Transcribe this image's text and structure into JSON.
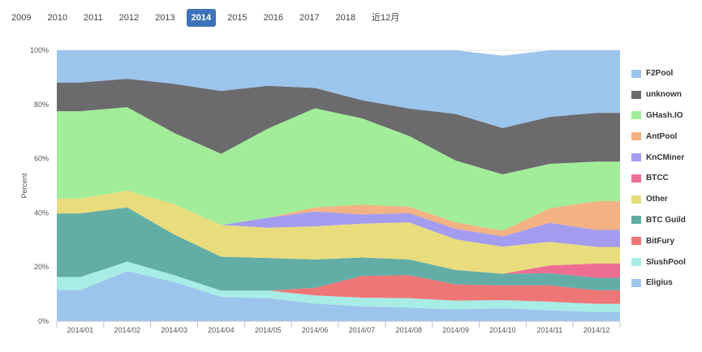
{
  "tabs": {
    "items": [
      "2009",
      "2010",
      "2011",
      "2012",
      "2013",
      "2014",
      "2015",
      "2016",
      "2017",
      "2018",
      "近12月"
    ],
    "active": "2014"
  },
  "chart_data": {
    "type": "area",
    "stacked": true,
    "percent": true,
    "ylabel": "Percent",
    "ylim": [
      0,
      100
    ],
    "yticks": [
      "0%",
      "20%",
      "40%",
      "60%",
      "80%",
      "100%"
    ],
    "categories": [
      "2014/01",
      "2014/02",
      "2014/03",
      "2014/04",
      "2014/05",
      "2014/06",
      "2014/07",
      "2014/08",
      "2014/09",
      "2014/10",
      "2014/11",
      "2014/12"
    ],
    "grid": true,
    "legend_position": "right",
    "series": [
      {
        "name": "Eligius",
        "color": "#9cc5ee",
        "values": [
          11.5,
          18.5,
          14.5,
          9.0,
          8.5,
          6.5,
          5.5,
          5.0,
          4.3,
          4.8,
          4.0,
          3.4
        ]
      },
      {
        "name": "SlushPool",
        "color": "#a8ece6",
        "values": [
          4.8,
          3.5,
          2.5,
          2.3,
          2.8,
          3.0,
          3.2,
          3.5,
          3.3,
          3.0,
          3.2,
          3.0
        ]
      },
      {
        "name": "BitFury",
        "color": "#ee7677",
        "values": [
          0,
          0,
          0,
          0,
          0,
          2.8,
          8.0,
          8.5,
          6.0,
          5.4,
          6.0,
          5.0
        ]
      },
      {
        "name": "BTC Guild",
        "color": "#62ada6",
        "values": [
          23.5,
          20.0,
          15.0,
          12.5,
          12.0,
          10.5,
          6.8,
          5.8,
          5.3,
          4.3,
          4.5,
          4.6
        ]
      },
      {
        "name": "BTCC",
        "color": "#ee6e93",
        "values": [
          0,
          0,
          0,
          0,
          0,
          0,
          0,
          0,
          0,
          0,
          2.9,
          5.3
        ]
      },
      {
        "name": "Other",
        "color": "#e9dc7d",
        "values": [
          5.5,
          6.2,
          11.2,
          11.7,
          11.2,
          12.2,
          12.5,
          13.7,
          11.3,
          10.0,
          8.7,
          6.1
        ]
      },
      {
        "name": "KnCMiner",
        "color": "#a49cf0",
        "values": [
          0,
          0,
          0,
          0,
          3.7,
          5.5,
          3.4,
          3.4,
          3.9,
          3.8,
          7.0,
          6.3
        ]
      },
      {
        "name": "AntPool",
        "color": "#f3b283",
        "values": [
          0,
          0,
          0,
          0,
          0,
          1.5,
          3.6,
          2.4,
          2.4,
          2.1,
          5.4,
          10.6
        ]
      },
      {
        "name": "GHash.IO",
        "color": "#a2ed9a",
        "values": [
          32.2,
          30.8,
          26.3,
          26.3,
          32.9,
          36.6,
          31.9,
          26.1,
          22.8,
          20.8,
          16.4,
          14.6
        ]
      },
      {
        "name": "unknown",
        "color": "#6b6a6d",
        "values": [
          10.6,
          10.5,
          18.1,
          23.2,
          15.8,
          7.5,
          6.7,
          10.1,
          17.2,
          17.1,
          17.3,
          18.0
        ]
      },
      {
        "name": "F2Pool",
        "color": "#9cc5ee",
        "values": [
          11.9,
          10.5,
          12.4,
          15.0,
          13.1,
          13.9,
          18.4,
          21.5,
          23.5,
          26.7,
          24.6,
          23.1
        ]
      }
    ],
    "legend_order": [
      "F2Pool",
      "unknown",
      "GHash.IO",
      "AntPool",
      "KnCMiner",
      "BTCC",
      "Other",
      "BTC Guild",
      "BitFury",
      "SlushPool",
      "Eligius"
    ]
  }
}
